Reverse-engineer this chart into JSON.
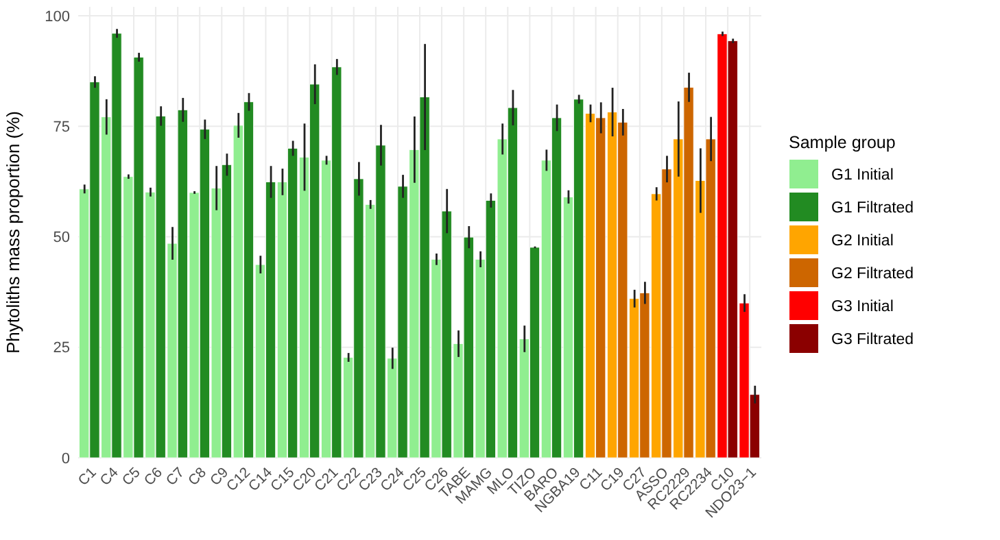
{
  "chart_data": {
    "type": "bar",
    "ylabel": "Phytoliths mass proportion (%)",
    "legend_title": "Sample group",
    "legend": "right",
    "grid": true,
    "categories": [
      "C1",
      "C4",
      "C5",
      "C6",
      "C7",
      "C8",
      "C9",
      "C12",
      "C14",
      "C15",
      "C20",
      "C21",
      "C22",
      "C23",
      "C24",
      "C25",
      "C26",
      "TABE",
      "MAMG",
      "MLO",
      "TIZO",
      "BARO",
      "NGBA19",
      "C11",
      "C19",
      "C27",
      "ASSO",
      "RC2229",
      "RC2234",
      "C10",
      "NDO23−1"
    ],
    "ylim": [
      0,
      102
    ],
    "yticks": [
      0,
      25,
      50,
      75,
      100
    ],
    "series": [
      {
        "name": "G1 Initial",
        "color": "#90ee90",
        "values": [
          60.8,
          77.1,
          63.6,
          60.1,
          48.5,
          60,
          61,
          75.2,
          43.7,
          62.4,
          68,
          67.3,
          22.7,
          57.3,
          22.5,
          69.7,
          44.9,
          25.8,
          44.9,
          72.1,
          26.9,
          67.3,
          59,
          null,
          null,
          null,
          null,
          null,
          null,
          null,
          null
        ],
        "errors": [
          1,
          4,
          0.5,
          1,
          3.7,
          0.3,
          5,
          2.8,
          2,
          3,
          7.6,
          1,
          1,
          1,
          2.4,
          7.5,
          1.3,
          3,
          1.8,
          3.5,
          3,
          2.4,
          1.5,
          null,
          null,
          null,
          null,
          null,
          null,
          null,
          null
        ]
      },
      {
        "name": "G1 Filtrated",
        "color": "#228b22",
        "values": [
          85,
          96,
          90.6,
          77.3,
          78.7,
          74.3,
          66.3,
          80.5,
          62.4,
          70,
          84.5,
          88.4,
          63.1,
          70.7,
          61.4,
          81.6,
          55.8,
          49.9,
          58.2,
          79.2,
          47.6,
          76.9,
          81.1,
          null,
          null,
          null,
          null,
          null,
          null,
          null,
          null
        ],
        "errors": [
          1.3,
          1,
          1,
          2.2,
          2.7,
          2.2,
          2.5,
          2,
          3.6,
          1.7,
          4.5,
          1.8,
          3.8,
          4.6,
          2.6,
          12,
          5,
          2.5,
          1.6,
          4,
          0.2,
          3,
          1,
          null,
          null,
          null,
          null,
          null,
          null,
          null,
          null
        ]
      },
      {
        "name": "G2 Initial",
        "color": "#ffa500",
        "values": [
          null,
          null,
          null,
          null,
          null,
          null,
          null,
          null,
          null,
          null,
          null,
          null,
          null,
          null,
          null,
          null,
          null,
          null,
          null,
          null,
          null,
          null,
          null,
          77.9,
          78.2,
          36,
          59.7,
          72.1,
          62.7,
          null,
          null
        ],
        "errors": [
          null,
          null,
          null,
          null,
          null,
          null,
          null,
          null,
          null,
          null,
          null,
          null,
          null,
          null,
          null,
          null,
          null,
          null,
          null,
          null,
          null,
          null,
          null,
          2,
          5.5,
          2,
          1.5,
          8.5,
          7.3,
          null,
          null
        ]
      },
      {
        "name": "G2 Filtrated",
        "color": "#cd6600",
        "values": [
          null,
          null,
          null,
          null,
          null,
          null,
          null,
          null,
          null,
          null,
          null,
          null,
          null,
          null,
          null,
          null,
          null,
          null,
          null,
          null,
          null,
          null,
          null,
          76.9,
          75.9,
          37.3,
          65.3,
          83.8,
          72.1,
          null,
          null
        ],
        "errors": [
          null,
          null,
          null,
          null,
          null,
          null,
          null,
          null,
          null,
          null,
          null,
          null,
          null,
          null,
          null,
          null,
          null,
          null,
          null,
          null,
          null,
          null,
          null,
          3.5,
          3,
          2.5,
          3,
          3.3,
          5,
          null,
          null
        ]
      },
      {
        "name": "G3 Initial",
        "color": "#ff0000",
        "values": [
          null,
          null,
          null,
          null,
          null,
          null,
          null,
          null,
          null,
          null,
          null,
          null,
          null,
          null,
          null,
          null,
          null,
          null,
          null,
          null,
          null,
          null,
          null,
          null,
          null,
          null,
          null,
          null,
          null,
          95.9,
          35
        ],
        "errors": [
          null,
          null,
          null,
          null,
          null,
          null,
          null,
          null,
          null,
          null,
          null,
          null,
          null,
          null,
          null,
          null,
          null,
          null,
          null,
          null,
          null,
          null,
          null,
          null,
          null,
          null,
          null,
          null,
          null,
          0.5,
          2
        ]
      },
      {
        "name": "G3 Filtrated",
        "color": "#8b0000",
        "values": [
          null,
          null,
          null,
          null,
          null,
          null,
          null,
          null,
          null,
          null,
          null,
          null,
          null,
          null,
          null,
          null,
          null,
          null,
          null,
          null,
          null,
          null,
          null,
          null,
          null,
          null,
          null,
          null,
          null,
          94.3,
          14.3
        ],
        "errors": [
          null,
          null,
          null,
          null,
          null,
          null,
          null,
          null,
          null,
          null,
          null,
          null,
          null,
          null,
          null,
          null,
          null,
          null,
          null,
          null,
          null,
          null,
          null,
          null,
          null,
          null,
          null,
          null,
          null,
          0.5,
          2
        ]
      }
    ]
  }
}
